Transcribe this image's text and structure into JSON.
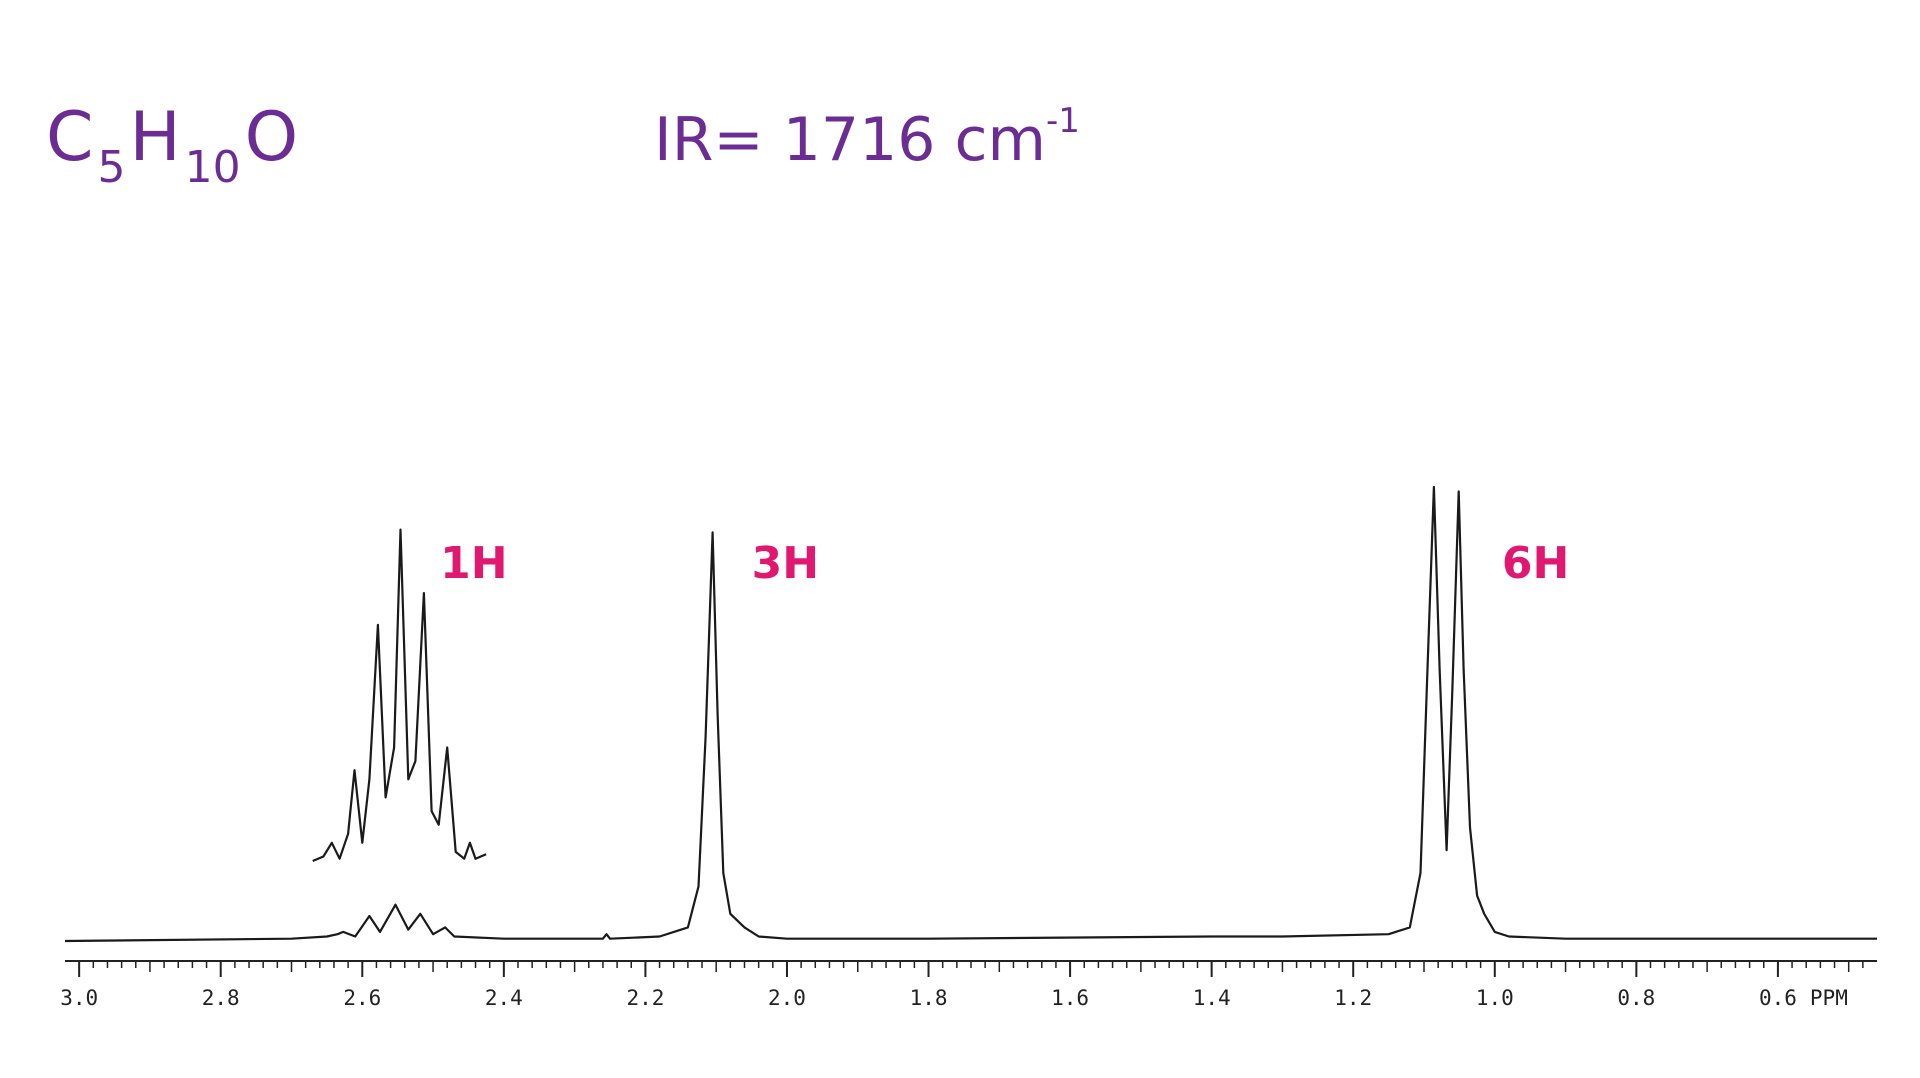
{
  "chart_data": {
    "type": "line",
    "formula": [
      "C",
      "5",
      "H",
      "10",
      "O"
    ],
    "ir": [
      "IR= 1716 cm",
      "-1"
    ],
    "xlabel": "PPM",
    "annotations": [
      {
        "text": "1H",
        "x": 2.49
      },
      {
        "text": "3H",
        "x": 2.05
      },
      {
        "text": "6H",
        "x": 0.99
      }
    ],
    "annotation_color": "#e0186f",
    "title_color": "#6b2d93",
    "xlim": [
      3.02,
      0.46
    ],
    "ylim": [
      0,
      100
    ],
    "xticks": [
      {
        "value": 3,
        "label": "3.0"
      },
      2.8,
      2.6,
      2.4,
      2.2,
      {
        "value": 2,
        "label": "2.0"
      },
      1.8,
      1.6,
      1.4,
      1.2,
      {
        "value": 1,
        "label": "1.0"
      },
      0.8,
      0.6
    ],
    "xticks_minor": [
      3,
      2.98,
      2.96,
      2.94,
      2.92,
      2.9,
      2.88,
      2.86,
      2.84,
      2.82,
      2.8,
      2.78,
      2.76,
      2.74,
      2.72,
      2.7,
      2.68,
      2.66,
      2.64,
      2.62,
      2.6,
      2.58,
      2.56,
      2.54,
      2.52,
      2.5,
      2.48,
      2.46,
      2.44,
      2.42,
      2.4,
      2.38,
      2.36,
      2.34,
      2.32,
      2.3,
      2.28,
      2.26,
      2.24,
      2.22,
      2.2,
      2.18,
      2.16,
      2.14,
      2.12,
      2.1,
      2.08,
      2.06,
      2.04,
      2.02,
      2,
      1.98,
      1.96,
      1.94,
      1.92,
      1.9,
      1.88,
      1.86,
      1.84,
      1.82,
      1.8,
      1.78,
      1.76,
      1.74,
      1.72,
      1.7,
      1.68,
      1.66,
      1.64,
      1.62,
      1.6,
      1.58,
      1.56,
      1.54,
      1.52,
      1.5,
      1.48,
      1.46,
      1.44,
      1.42,
      1.4,
      1.38,
      1.36,
      1.34,
      1.32,
      1.3,
      1.28,
      1.26,
      1.24,
      1.22,
      1.2,
      1.18,
      1.16,
      1.14,
      1.12,
      1.1,
      1.08,
      1.06,
      1.04,
      1.02,
      1,
      0.98,
      0.96,
      0.94,
      0.92,
      0.9,
      0.88,
      0.86,
      0.84,
      0.82,
      0.8,
      0.78,
      0.76,
      0.74,
      0.72,
      0.7,
      0.68,
      0.66,
      0.64,
      0.62,
      0.6,
      0.58,
      0.56,
      0.54,
      0.52,
      0.5,
      0.48
    ],
    "series": [
      {
        "color": "#1a1a1a",
        "x": [
          3.02,
          2.7,
          2.65,
          2.635,
          2.627,
          2.61,
          2.59,
          2.575,
          2.553,
          2.535,
          2.518,
          2.5,
          2.483,
          2.47,
          2.4,
          2.26,
          2.255,
          2.25,
          2.18,
          2.14,
          2.125,
          2.115,
          2.105,
          2.098,
          2.09,
          2.08,
          2.06,
          2.04,
          2.0,
          1.8,
          1.4,
          1.3,
          1.15,
          1.12,
          1.105,
          1.095,
          1.086,
          1.078,
          1.068,
          1.06,
          1.051,
          1.044,
          1.035,
          1.025,
          1.015,
          1.0,
          0.98,
          0.9,
          0.46
        ],
        "values": [
          0,
          0.5,
          1,
          1.5,
          2,
          1,
          5.5,
          2,
          8,
          2.5,
          6,
          1.5,
          3,
          1,
          0.5,
          0.5,
          1.5,
          0.5,
          1,
          3,
          12,
          45,
          90,
          50,
          15,
          6,
          3,
          1,
          0.5,
          0.5,
          1,
          1,
          1.5,
          3,
          15,
          60,
          100,
          60,
          20,
          55,
          99,
          60,
          25,
          10,
          6,
          2,
          1,
          0.5,
          0.5
        ]
      },
      {
        "color": "#1a1a1a",
        "x": [
          2.67,
          2.655,
          2.643,
          2.632,
          2.62,
          2.611,
          2.6,
          2.59,
          2.578,
          2.567,
          2.555,
          2.546,
          2.535,
          2.525,
          2.513,
          2.502,
          2.492,
          2.48,
          2.468,
          2.456,
          2.448,
          2.44,
          2.425
        ],
        "values": [
          0,
          1,
          4,
          0.5,
          6,
          20,
          4,
          18,
          52,
          14,
          25,
          73,
          18,
          22,
          59,
          11,
          8,
          25,
          2,
          0.5,
          4,
          0.5,
          1.5
        ]
      }
    ]
  }
}
